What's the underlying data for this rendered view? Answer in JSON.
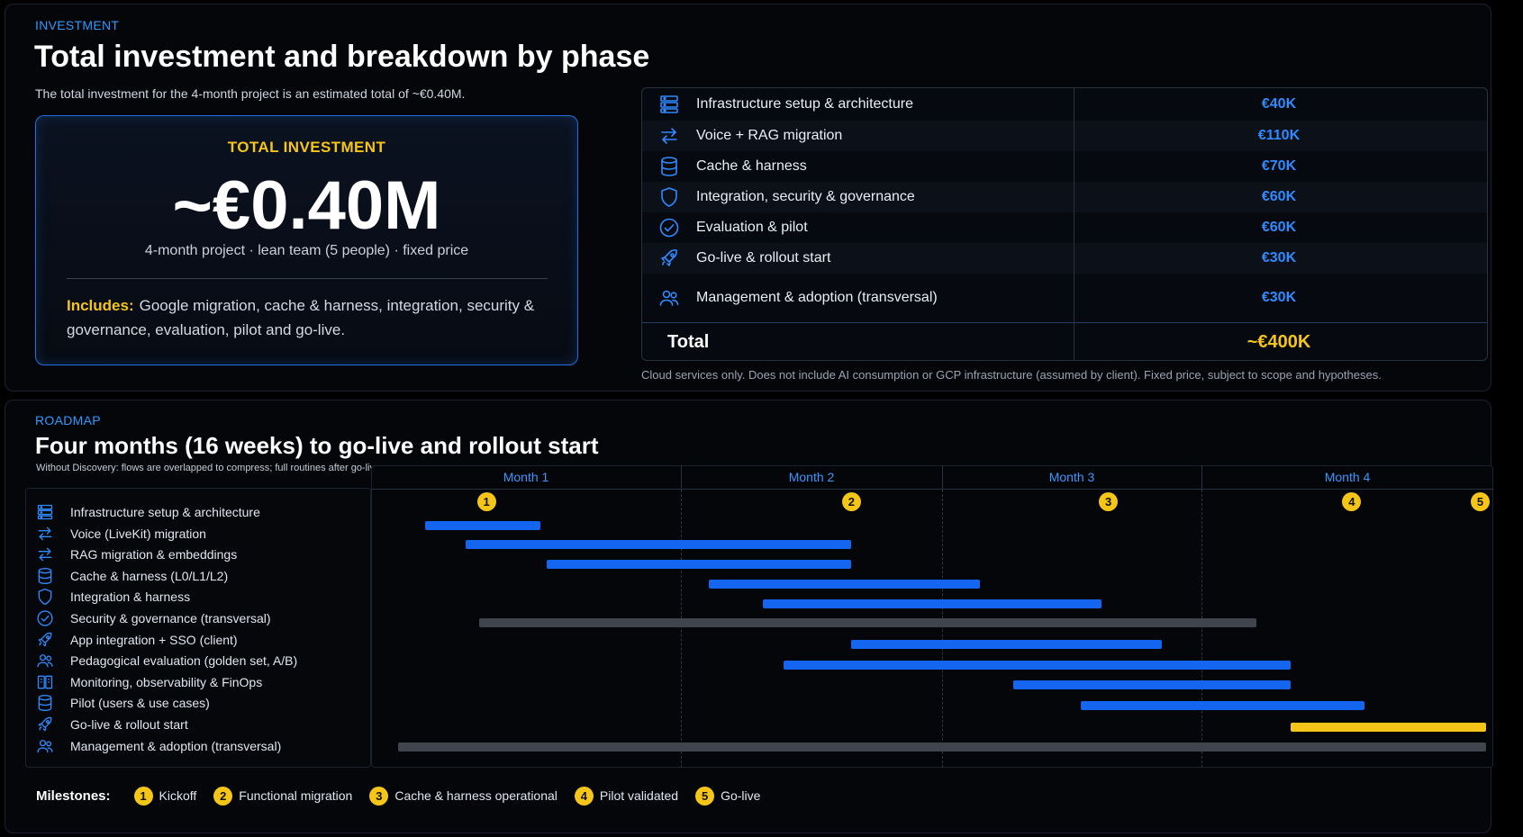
{
  "investment": {
    "eyebrow": "INVESTMENT",
    "title": "Total investment and breakdown by phase",
    "intro": "The total investment for the 4-month project is an estimated total of ~€0.40M.",
    "card": {
      "label": "TOTAL INVESTMENT",
      "amount": "~€0.40M",
      "subtitle": "4-month project · lean team (5 people) · fixed price",
      "includes_label": "Includes:",
      "includes_text": "Google migration, cache & harness, integration, security & governance, evaluation, pilot and go-live."
    },
    "table": {
      "rows": [
        {
          "icon": "server-icon",
          "name": "Infrastructure setup & architecture",
          "value": "€40K"
        },
        {
          "icon": "arrows-exchange-icon",
          "name": "Voice + RAG migration",
          "value": "€110K"
        },
        {
          "icon": "database-icon",
          "name": "Cache & harness",
          "value": "€70K"
        },
        {
          "icon": "shield-icon",
          "name": "Integration, security & governance",
          "value": "€60K"
        },
        {
          "icon": "check-circle-icon",
          "name": "Evaluation & pilot",
          "value": "€60K"
        },
        {
          "icon": "rocket-icon",
          "name": "Go-live & rollout start",
          "value": "€30K"
        },
        {
          "icon": "users-icon",
          "name": "Management & adoption (transversal)",
          "value": "€30K"
        }
      ],
      "total_label": "Total",
      "total_value": "~€400K"
    },
    "footnote": "Cloud services only. Does not include AI consumption or GCP infrastructure (assumed by client). Fixed price, subject to scope and hypotheses."
  },
  "roadmap": {
    "eyebrow": "ROADMAP",
    "title": "Four months (16 weeks) to go-live and rollout start",
    "subtitle": "Without Discovery: flows are overlapped to compress; full routines after go-live.",
    "months": [
      "Month 1",
      "Month 2",
      "Month 3",
      "Month 4"
    ],
    "colors": {
      "blue": "#1466f0",
      "gray": "#40444c",
      "yellow": "#f5c518"
    },
    "tasks": [
      {
        "icon": "server-icon",
        "name": "Infrastructure setup & architecture",
        "start_week": 1.4,
        "end_week": 3.1,
        "color": "blue"
      },
      {
        "icon": "arrows-exchange-icon",
        "name": "Voice (LiveKit) migration",
        "start_week": 2.0,
        "end_week": 7.7,
        "color": "blue"
      },
      {
        "icon": "arrows-exchange-icon",
        "name": "RAG migration & embeddings",
        "start_week": 3.2,
        "end_week": 7.7,
        "color": "blue"
      },
      {
        "icon": "database-icon",
        "name": "Cache & harness (L0/L1/L2)",
        "start_week": 5.6,
        "end_week": 9.6,
        "color": "blue"
      },
      {
        "icon": "shield-icon",
        "name": "Integration & harness",
        "start_week": 6.4,
        "end_week": 11.4,
        "color": "blue"
      },
      {
        "icon": "check-circle-icon",
        "name": "Security & governance (transversal)",
        "start_week": 2.2,
        "end_week": 13.7,
        "color": "gray"
      },
      {
        "icon": "rocket-icon",
        "name": "App integration + SSO (client)",
        "start_week": 7.7,
        "end_week": 12.3,
        "color": "blue"
      },
      {
        "icon": "users-icon",
        "name": "Pedagogical evaluation (golden set, A/B)",
        "start_week": 6.7,
        "end_week": 14.2,
        "color": "blue"
      },
      {
        "icon": "monitor-icon",
        "name": "Monitoring, observability & FinOps",
        "start_week": 10.1,
        "end_week": 14.2,
        "color": "blue"
      },
      {
        "icon": "database-icon",
        "name": "Pilot (users & use cases)",
        "start_week": 11.1,
        "end_week": 15.3,
        "color": "blue"
      },
      {
        "icon": "rocket-icon",
        "name": "Go-live & rollout start",
        "start_week": 14.2,
        "end_week": 17.1,
        "color": "yellow"
      },
      {
        "icon": "users-icon",
        "name": "Management & adoption (transversal)",
        "start_week": 1.0,
        "end_week": 17.1,
        "color": "gray"
      }
    ],
    "milestones": [
      {
        "n": "1",
        "label": "Kickoff",
        "week": 2.3
      },
      {
        "n": "2",
        "label": "Functional migration",
        "week": 7.7
      },
      {
        "n": "3",
        "label": "Cache & harness operational",
        "week": 11.5
      },
      {
        "n": "4",
        "label": "Pilot validated",
        "week": 15.1
      },
      {
        "n": "5",
        "label": "Go-live",
        "week": 17.0
      }
    ],
    "legend_title": "Milestones:"
  }
}
